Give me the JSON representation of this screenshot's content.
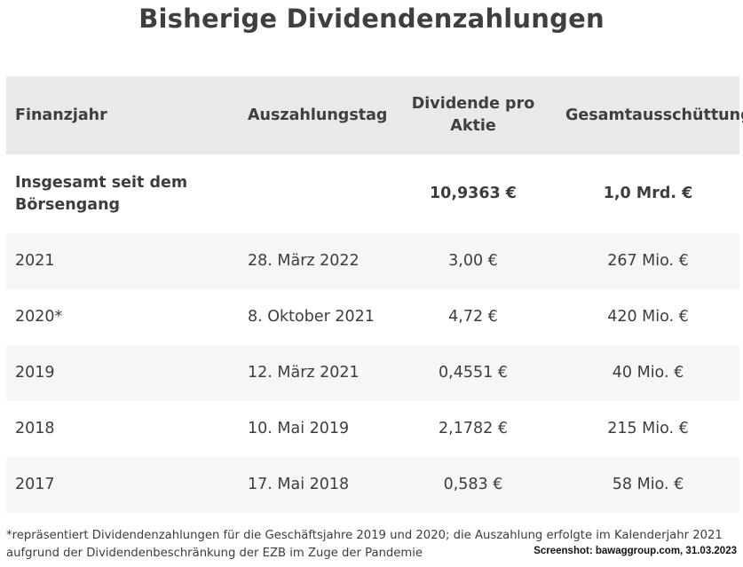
{
  "title": "Bisherige Dividendenzahlungen",
  "table": {
    "headers": [
      "Finanzjahr",
      "Auszahlungstag",
      "Dividende pro Aktie",
      "Gesamtausschüttung"
    ],
    "total_row": {
      "label": "Insgesamt seit dem Börsengang",
      "date": "",
      "dividend": "10,9363 €",
      "payout": "1,0 Mrd. €"
    },
    "rows": [
      {
        "year": "2021",
        "date": "28. März 2022",
        "dividend": "3,00 €",
        "payout": "267 Mio. €"
      },
      {
        "year": "2020*",
        "date": "8. Oktober 2021",
        "dividend": "4,72 €",
        "payout": "420 Mio. €"
      },
      {
        "year": "2019",
        "date": "12. März 2021",
        "dividend": "0,4551 €",
        "payout": "40 Mio. €"
      },
      {
        "year": "2018",
        "date": "10. Mai 2019",
        "dividend": "2,1782 €",
        "payout": "215 Mio. €"
      },
      {
        "year": "2017",
        "date": "17. Mai 2018",
        "dividend": "0,583 €",
        "payout": "58 Mio. €"
      }
    ]
  },
  "footnote": "*repräsentiert Dividendenzahlungen für die Geschäftsjahre 2019 und 2020; die Auszahlung erfolgte im Kalenderjahr 2021 aufgrund der Dividendenbeschränkung der EZB im Zuge der Pandemie",
  "credit": "Screenshot: bawaggroup.com, 31.03.2023"
}
